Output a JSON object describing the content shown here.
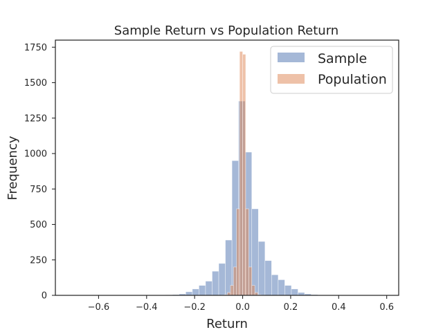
{
  "chart_data": {
    "type": "bar",
    "title": "Sample Return vs Population Return",
    "xlabel": "Return",
    "ylabel": "Frequency",
    "xlim": [
      -0.78,
      0.65
    ],
    "ylim": [
      0,
      1800
    ],
    "xticks": [
      -0.6,
      -0.4,
      -0.2,
      0.0,
      0.2,
      0.4,
      0.6
    ],
    "xtick_labels": [
      "−0.6",
      "−0.4",
      "−0.2",
      "0.0",
      "0.2",
      "0.4",
      "0.6"
    ],
    "yticks": [
      0,
      250,
      500,
      750,
      1000,
      1250,
      1500,
      1750
    ],
    "ytick_labels": [
      "0",
      "250",
      "500",
      "750",
      "1000",
      "1250",
      "1500",
      "1750"
    ],
    "grid": false,
    "legend_position": "top-right",
    "series": [
      {
        "name": "Sample",
        "color": "#4c72b0",
        "opacity": 0.5,
        "bin_width": 0.0275,
        "bin_left_edges": [
          -0.3195,
          -0.292,
          -0.2645,
          -0.237,
          -0.2095,
          -0.182,
          -0.1545,
          -0.127,
          -0.0995,
          -0.072,
          -0.0445,
          -0.017,
          0.0105,
          0.038,
          0.0655,
          0.093,
          0.1205,
          0.148,
          0.1755,
          0.203,
          0.2305,
          0.258,
          0.2855,
          0.313
        ],
        "values": [
          3,
          5,
          10,
          25,
          45,
          70,
          100,
          170,
          225,
          390,
          950,
          1370,
          1010,
          610,
          380,
          245,
          145,
          110,
          70,
          45,
          20,
          10,
          5,
          2
        ]
      },
      {
        "name": "Population",
        "color": "#dd8452",
        "opacity": 0.5,
        "bin_width": 0.0127,
        "bin_left_edges": [
          -0.0889,
          -0.0762,
          -0.0635,
          -0.0508,
          -0.0381,
          -0.0254,
          -0.0127,
          0.0,
          0.0127,
          0.0254,
          0.0381,
          0.0508,
          0.0635,
          0.0762
        ],
        "values": [
          2,
          5,
          20,
          70,
          200,
          610,
          1720,
          1700,
          610,
          200,
          70,
          20,
          5,
          2
        ]
      }
    ]
  }
}
